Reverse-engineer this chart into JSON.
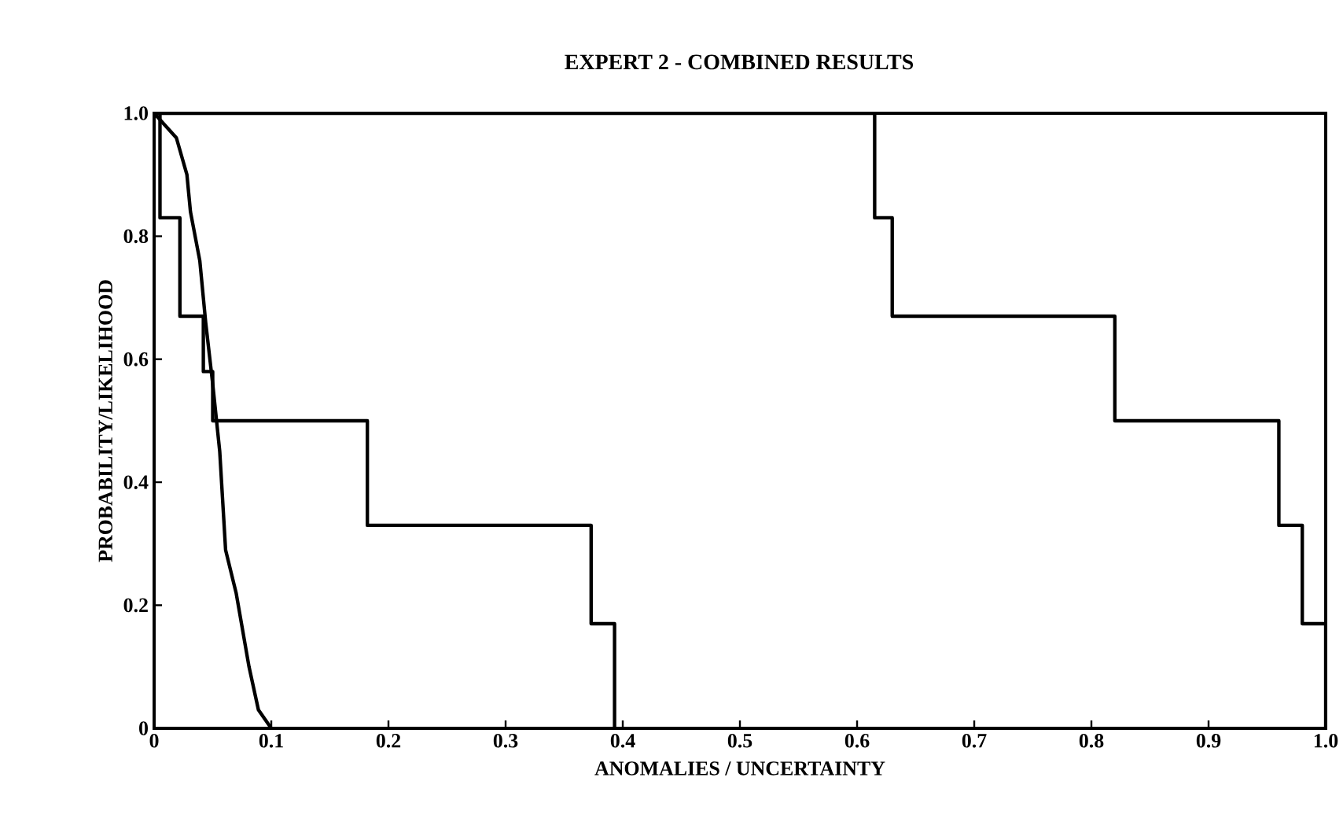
{
  "chart_data": {
    "type": "step",
    "title": "EXPERT 2 - COMBINED RESULTS",
    "xlabel": "ANOMALIES / UNCERTAINTY",
    "ylabel": "PROBABILITY/LIKELIHOOD",
    "series": [
      {
        "color": "#000000",
        "x": [
          0,
          0.005,
          0.022,
          0.042,
          0.05,
          0.182,
          0.373,
          0.393
        ],
        "values": [
          1,
          0.83,
          0.67,
          0.58,
          0.5,
          0.33,
          0.17,
          0
        ]
      },
      {
        "color": "#000000",
        "x": [
          0,
          0.615,
          0.63,
          0.82,
          0.96,
          0.98,
          1.0
        ],
        "values": [
          1,
          0.83,
          0.67,
          0.5,
          0.33,
          0.17,
          0
        ]
      },
      {
        "type": "line",
        "color": "#000000",
        "x": [
          0,
          0.019,
          0.028,
          0.031,
          0.039,
          0.044,
          0.05,
          0.056,
          0.061,
          0.07,
          0.081,
          0.089,
          0.1
        ],
        "values": [
          1,
          0.96,
          0.9,
          0.84,
          0.76,
          0.66,
          0.56,
          0.45,
          0.29,
          0.22,
          0.1,
          0.03,
          0
        ]
      }
    ],
    "xlim": [
      0,
      1
    ],
    "ylim": [
      0,
      1
    ],
    "xticks": [
      0,
      0.1,
      0.2,
      0.3,
      0.4,
      0.5,
      0.6,
      0.7,
      0.8,
      0.9,
      {
        "value": 1,
        "label": "1.0"
      }
    ],
    "yticks": [
      0,
      0.2,
      0.4,
      0.6,
      0.8,
      {
        "value": 1,
        "label": "1.0"
      }
    ],
    "marker": "none",
    "line_style": "solid"
  }
}
